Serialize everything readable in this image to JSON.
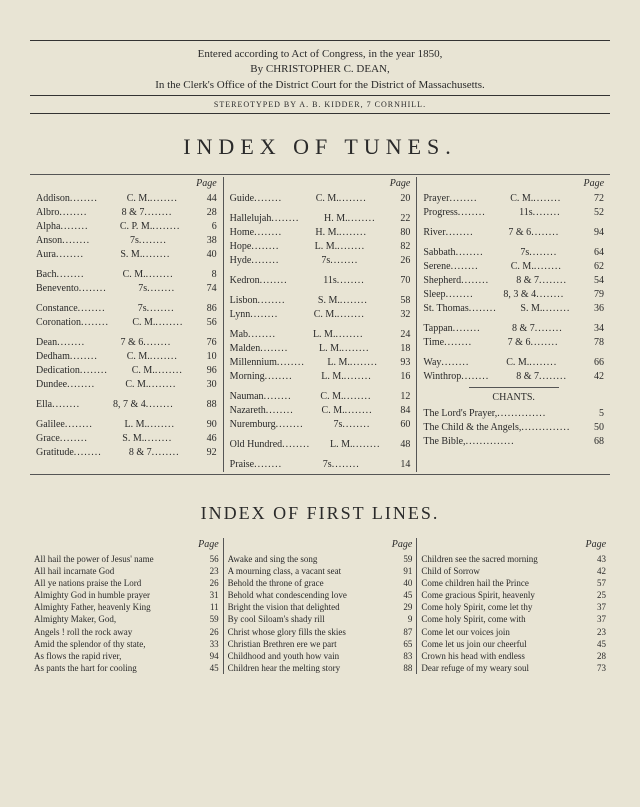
{
  "copyright": {
    "line1": "Entered according to Act of Congress, in the year 1850,",
    "line2": "By CHRISTOPHER C. DEAN,",
    "line3": "In the Clerk's Office of the District Court for the District of Massachusetts."
  },
  "stereotype": "STEREOTYPED BY A. B. KIDDER, 7 CORNHILL.",
  "title_tunes": "INDEX OF TUNES.",
  "page_label": "Page",
  "tunes": {
    "col1": [
      [
        {
          "name": "Addison",
          "meter": "C. M.",
          "pg": "44"
        },
        {
          "name": "Albro",
          "meter": "8 & 7",
          "pg": "28"
        },
        {
          "name": "Alpha",
          "meter": "C. P. M.",
          "pg": "6"
        },
        {
          "name": "Anson",
          "meter": "7s",
          "pg": "38"
        },
        {
          "name": "Aura",
          "meter": "S. M.",
          "pg": "40"
        }
      ],
      [
        {
          "name": "Bach",
          "meter": "C. M.",
          "pg": "8"
        },
        {
          "name": "Benevento",
          "meter": "7s",
          "pg": "74"
        }
      ],
      [
        {
          "name": "Constance",
          "meter": "7s",
          "pg": "86"
        },
        {
          "name": "Coronation",
          "meter": "C. M.",
          "pg": "56"
        }
      ],
      [
        {
          "name": "Dean",
          "meter": "7 & 6",
          "pg": "76"
        },
        {
          "name": "Dedham",
          "meter": "C. M.",
          "pg": "10"
        },
        {
          "name": "Dedication",
          "meter": "C. M.",
          "pg": "96"
        },
        {
          "name": "Dundee",
          "meter": "C. M.",
          "pg": "30"
        }
      ],
      [
        {
          "name": "Ella",
          "meter": "8, 7 & 4",
          "pg": "88"
        }
      ],
      [
        {
          "name": "Galilee",
          "meter": "L. M.",
          "pg": "90"
        },
        {
          "name": "Grace",
          "meter": "S. M.",
          "pg": "46"
        },
        {
          "name": "Gratitude",
          "meter": "8 & 7",
          "pg": "92"
        }
      ]
    ],
    "col2": [
      [
        {
          "name": "Guide",
          "meter": "C. M.",
          "pg": "20"
        }
      ],
      [
        {
          "name": "Hallelujah",
          "meter": "H. M.",
          "pg": "22"
        },
        {
          "name": "Home",
          "meter": "H. M.",
          "pg": "80"
        },
        {
          "name": "Hope",
          "meter": "L. M.",
          "pg": "82"
        },
        {
          "name": "Hyde",
          "meter": "7s",
          "pg": "26"
        }
      ],
      [
        {
          "name": "Kedron",
          "meter": "11s",
          "pg": "70"
        }
      ],
      [
        {
          "name": "Lisbon",
          "meter": "S. M.",
          "pg": "58"
        },
        {
          "name": "Lynn",
          "meter": "C. M.",
          "pg": "32"
        }
      ],
      [
        {
          "name": "Mab",
          "meter": "L. M.",
          "pg": "24"
        },
        {
          "name": "Malden",
          "meter": "L. M.",
          "pg": "18"
        },
        {
          "name": "Millennium",
          "meter": "L. M.",
          "pg": "93"
        },
        {
          "name": "Morning",
          "meter": "L. M.",
          "pg": "16"
        }
      ],
      [
        {
          "name": "Nauman",
          "meter": "C. M.",
          "pg": "12"
        },
        {
          "name": "Nazareth",
          "meter": "C. M.",
          "pg": "84"
        },
        {
          "name": "Nuremburg",
          "meter": "7s",
          "pg": "60"
        }
      ],
      [
        {
          "name": "Old Hundred",
          "meter": "L. M.",
          "pg": "48"
        }
      ],
      [
        {
          "name": "Praise",
          "meter": "7s",
          "pg": "14"
        }
      ]
    ],
    "col3": [
      [
        {
          "name": "Prayer",
          "meter": "C. M.",
          "pg": "72"
        },
        {
          "name": "Progress",
          "meter": "11s",
          "pg": "52"
        }
      ],
      [
        {
          "name": "River",
          "meter": "7 & 6",
          "pg": "94"
        }
      ],
      [
        {
          "name": "Sabbath",
          "meter": "7s",
          "pg": "64"
        },
        {
          "name": "Serene",
          "meter": "C. M.",
          "pg": "62"
        },
        {
          "name": "Shepherd",
          "meter": "8 & 7",
          "pg": "54"
        },
        {
          "name": "Sleep",
          "meter": "8, 3 & 4",
          "pg": "79"
        },
        {
          "name": "St. Thomas",
          "meter": "S. M.",
          "pg": "36"
        }
      ],
      [
        {
          "name": "Tappan",
          "meter": "8 & 7",
          "pg": "34"
        },
        {
          "name": "Time",
          "meter": "7 & 6",
          "pg": "78"
        }
      ],
      [
        {
          "name": "Way",
          "meter": "C. M.",
          "pg": "66"
        },
        {
          "name": "Winthrop",
          "meter": "8 & 7",
          "pg": "42"
        }
      ]
    ]
  },
  "chants_title": "CHANTS.",
  "chants": [
    {
      "name": "The Lord's Prayer,",
      "pg": "5"
    },
    {
      "name": "The Child & the Angels,",
      "pg": "50"
    },
    {
      "name": "The Bible,",
      "pg": "68"
    }
  ],
  "title_lines": "INDEX OF FIRST LINES.",
  "lines": {
    "col1": [
      {
        "txt": "All hail the power of Jesus' name",
        "pg": "56"
      },
      {
        "txt": "All hail incarnate God",
        "pg": "23"
      },
      {
        "txt": "All ye nations praise the Lord",
        "pg": "26"
      },
      {
        "txt": "Almighty God in humble prayer",
        "pg": "31"
      },
      {
        "txt": "Almighty Father, heavenly King",
        "pg": "11"
      },
      {
        "txt": "Almighty Maker, God,",
        "pg": "59"
      },
      {
        "txt": "Angels ! roll the rock away",
        "pg": "26"
      },
      {
        "txt": "Amid the splendor of thy state,",
        "pg": "33"
      },
      {
        "txt": "As flows the rapid river,",
        "pg": "94"
      },
      {
        "txt": "As pants the hart for cooling",
        "pg": "45"
      }
    ],
    "col2": [
      {
        "txt": "Awake and sing the song",
        "pg": "59"
      },
      {
        "txt": "A mourning class, a vacant seat",
        "pg": "91"
      },
      {
        "txt": "Behold the throne of grace",
        "pg": "40"
      },
      {
        "txt": "Behold what condescending love",
        "pg": "45"
      },
      {
        "txt": "Bright the vision that delighted",
        "pg": "29"
      },
      {
        "txt": "By cool Siloam's shady rill",
        "pg": "9"
      },
      {
        "txt": "Christ whose glory fills the skies",
        "pg": "87"
      },
      {
        "txt": "Christian Brethren ere we part",
        "pg": "65"
      },
      {
        "txt": "Childhood and youth how vain",
        "pg": "83"
      },
      {
        "txt": "Children hear the melting story",
        "pg": "88"
      }
    ],
    "col3": [
      {
        "txt": "Children see the sacred morning",
        "pg": "43"
      },
      {
        "txt": "Child of Sorrow",
        "pg": "42"
      },
      {
        "txt": "Come children hail the Prince",
        "pg": "57"
      },
      {
        "txt": "Come gracious Spirit, heavenly",
        "pg": "25"
      },
      {
        "txt": "Come holy Spirit, come let thy",
        "pg": "37"
      },
      {
        "txt": "Come holy Spirit, come with",
        "pg": "37"
      },
      {
        "txt": "Come let our voices join",
        "pg": "23"
      },
      {
        "txt": "Come let us join our cheerful",
        "pg": "45"
      },
      {
        "txt": "Crown his head with endless",
        "pg": "28"
      },
      {
        "txt": "Dear refuge of my weary soul",
        "pg": "73"
      }
    ]
  }
}
